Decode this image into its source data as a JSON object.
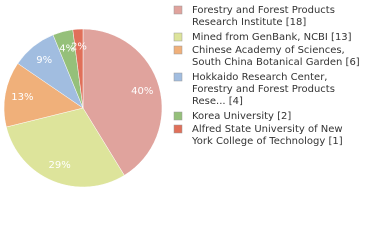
{
  "chart_data": {
    "type": "pie",
    "categories": [
      [
        "Forestry and Forest Products",
        "Research Institute [18]"
      ],
      [
        "Mined from GenBank, NCBI [13]"
      ],
      [
        "Chinese Academy of Sciences,",
        "South China Botanical Garden [6]"
      ],
      [
        "Hokkaido Research Center,",
        "Forestry and Forest Products",
        "Rese... [4]"
      ],
      [
        "Korea University [2]"
      ],
      [
        "Alfred State University of New",
        "York College of Technology [1]"
      ]
    ],
    "values": [
      40,
      29,
      13,
      9,
      4,
      2
    ],
    "value_labels": [
      "40%",
      "29%",
      "13%",
      "9%",
      "4%",
      "2%"
    ],
    "colors": [
      "#e0a39d",
      "#dde49b",
      "#f0b07a",
      "#a1bde0",
      "#95c07a",
      "#e0705a"
    ]
  }
}
